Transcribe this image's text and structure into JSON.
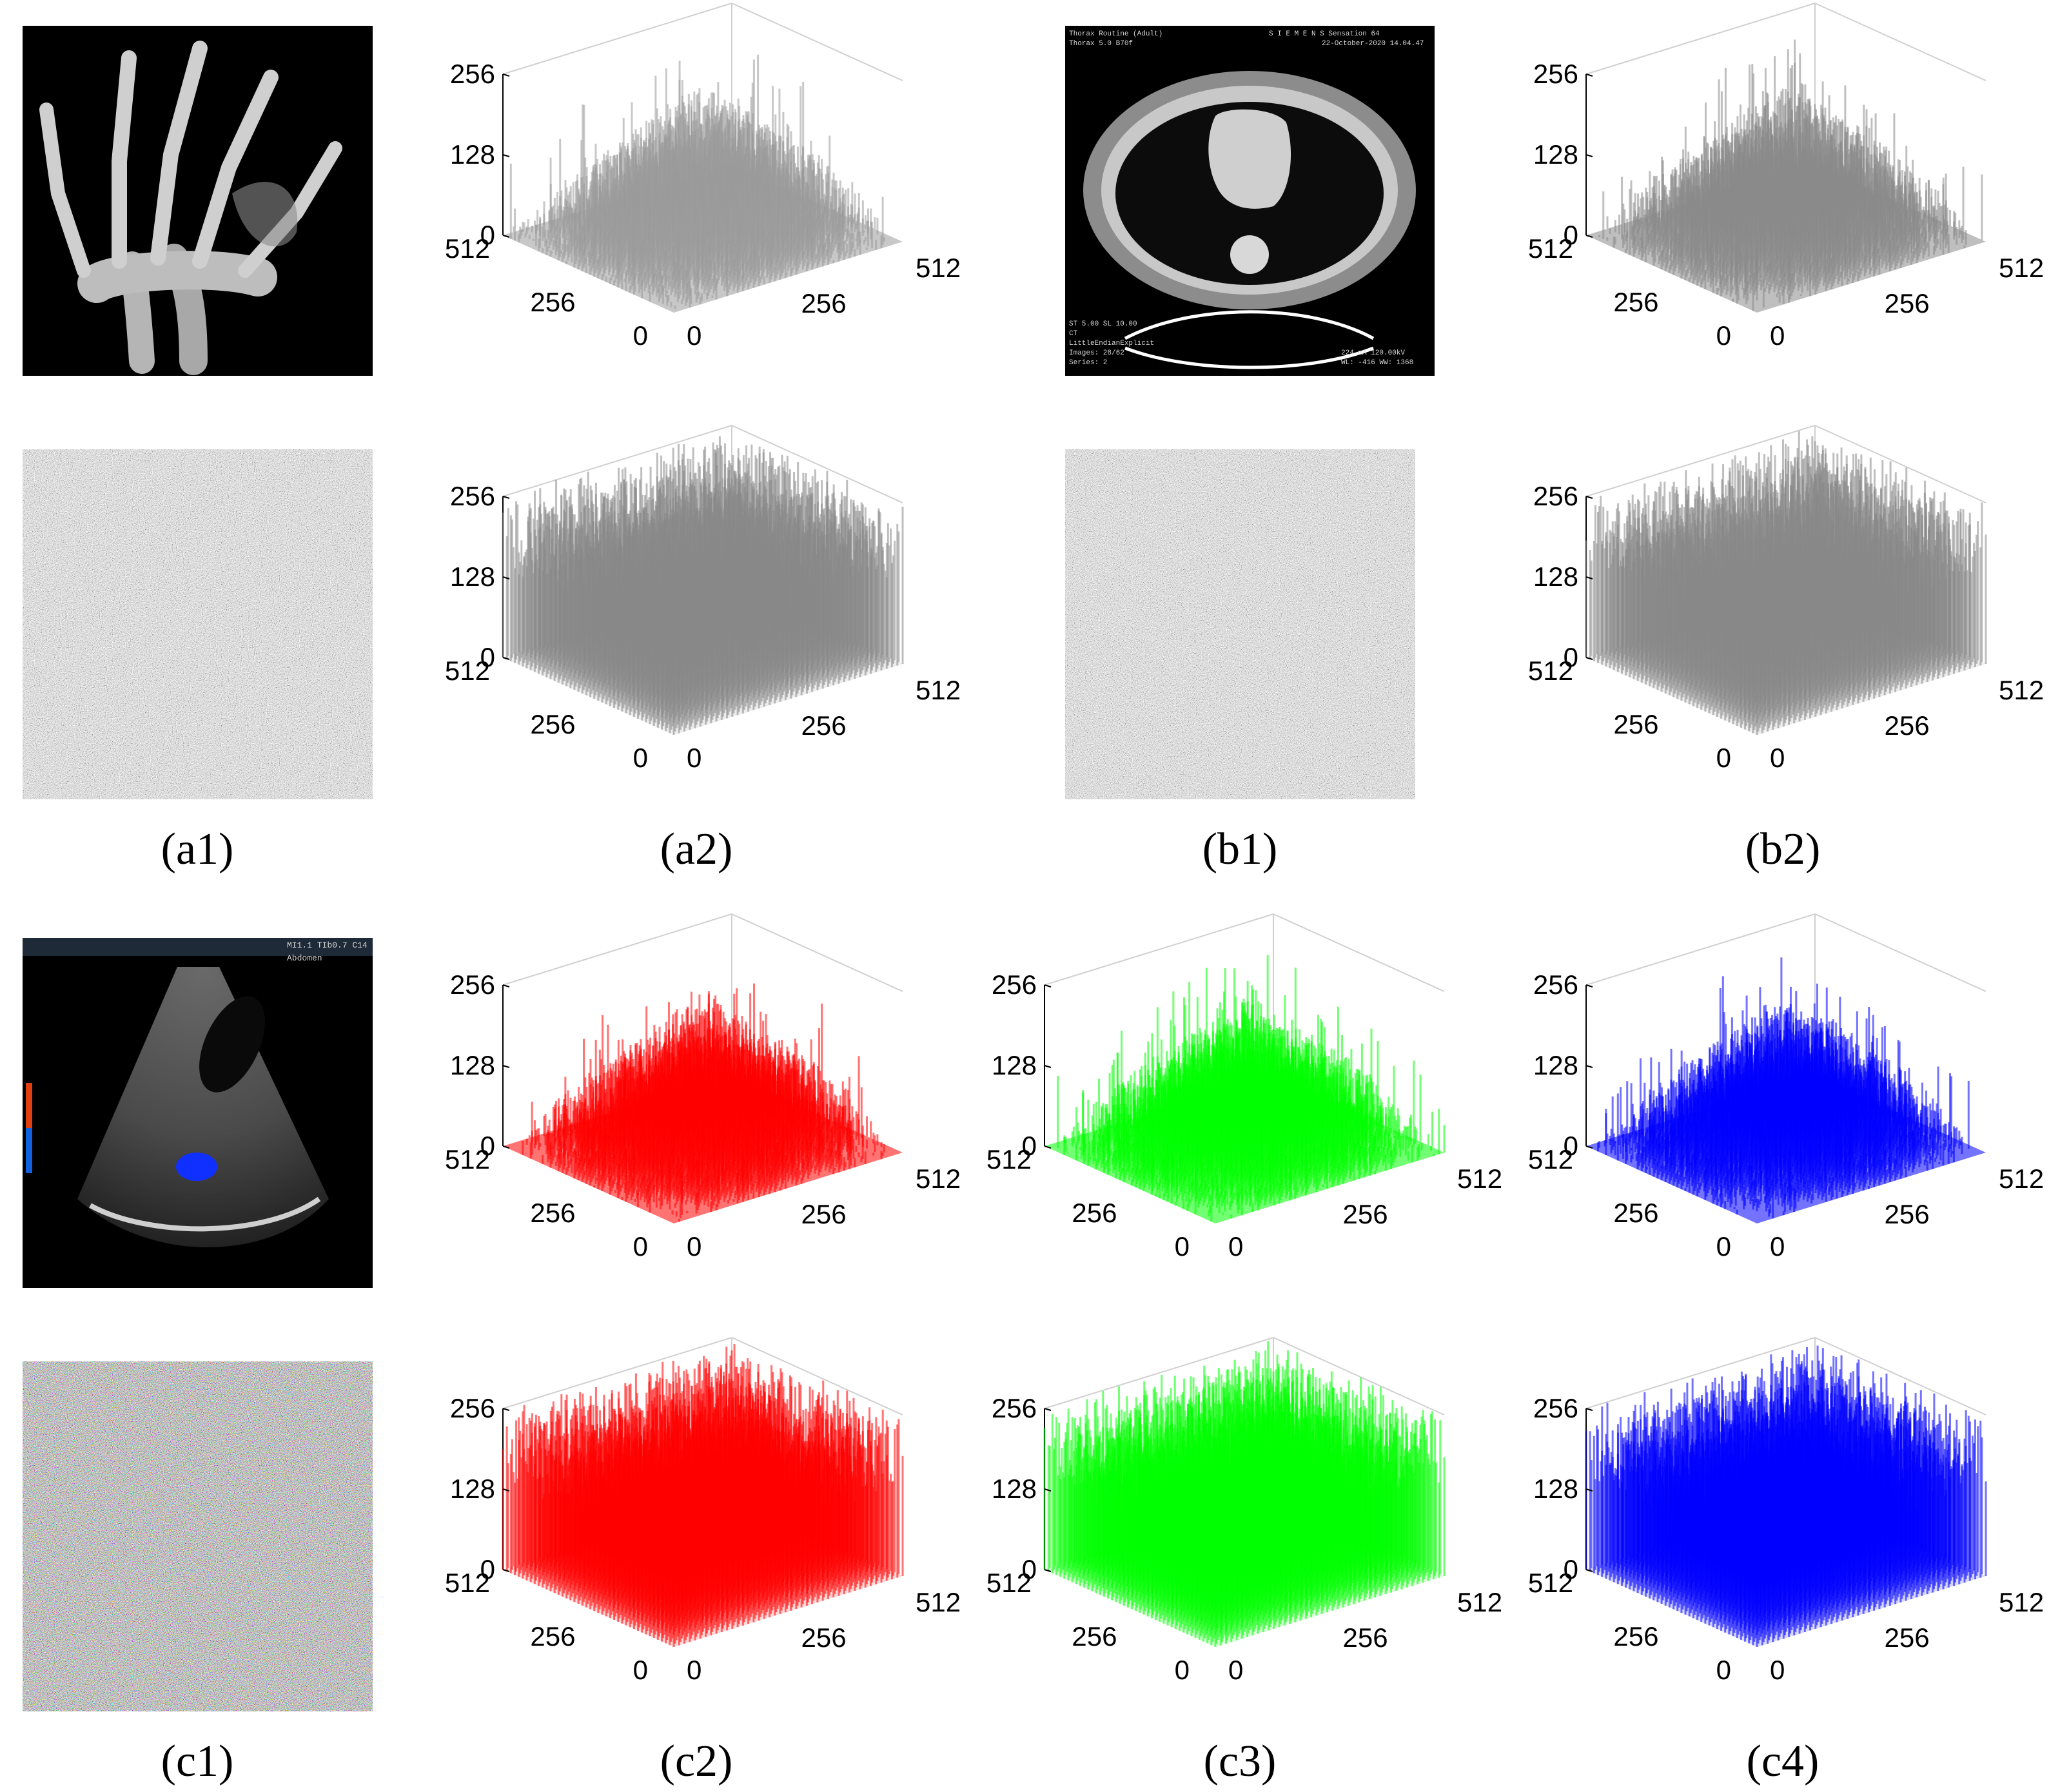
{
  "chart_data": [
    {
      "panel": "a1",
      "type": "image",
      "kind": "x-ray of hand",
      "caption": "(a1)"
    },
    {
      "panel": "a2",
      "type": "surface3d",
      "caption": "(a2)",
      "color": "#9a9a9a",
      "x_ticks": [
        "0",
        "256",
        "512"
      ],
      "y_ticks": [
        "0",
        "256",
        "512"
      ],
      "z_ticks": [
        "0",
        "128",
        "256"
      ],
      "distribution": "plain"
    },
    {
      "panel": "b1",
      "type": "image",
      "kind": "CT thorax scan",
      "caption": "(b1)",
      "overlay_text": [
        "Thorax Routine (Adult)",
        "S I E M E N S Sensation 64",
        "Thorax 5.0 B70f",
        "22-October-2020 14.04.47",
        "ST 5.00 SL 10.00",
        "CT",
        "LittleEndianExplicit",
        "Images: 28/62",
        "Series: 2",
        "224 mA 120.00kV",
        "WL: -416 WW: 1368"
      ]
    },
    {
      "panel": "b2",
      "type": "surface3d",
      "caption": "(b2)",
      "color": "#8a8a8a",
      "x_ticks": [
        "0",
        "256",
        "512"
      ],
      "y_ticks": [
        "0",
        "256",
        "512"
      ],
      "z_ticks": [
        "0",
        "128",
        "256"
      ],
      "distribution": "plain"
    },
    {
      "panel": "a1-enc",
      "type": "image",
      "kind": "encrypted noise (gray)"
    },
    {
      "panel": "a2-enc",
      "type": "surface3d",
      "color": "#888888",
      "x_ticks": [
        "0",
        "256",
        "512"
      ],
      "y_ticks": [
        "0",
        "256",
        "512"
      ],
      "z_ticks": [
        "0",
        "128",
        "256"
      ],
      "distribution": "uniform"
    },
    {
      "panel": "b1-enc",
      "type": "image",
      "kind": "encrypted noise (gray)"
    },
    {
      "panel": "b2-enc",
      "type": "surface3d",
      "color": "#888888",
      "x_ticks": [
        "0",
        "256",
        "512"
      ],
      "y_ticks": [
        "0",
        "256",
        "512"
      ],
      "z_ticks": [
        "0",
        "128",
        "256"
      ],
      "distribution": "uniform"
    },
    {
      "panel": "c1",
      "type": "image",
      "kind": "ultrasound of liver",
      "caption": "(c1)",
      "overlay_text": [
        "MI1.1 TIb0.7 C14",
        "Abdomen"
      ]
    },
    {
      "panel": "c2",
      "type": "surface3d",
      "caption": "(c2)",
      "color": "#ff0000",
      "x_ticks": [
        "0",
        "256",
        "512"
      ],
      "y_ticks": [
        "0",
        "256",
        "512"
      ],
      "z_ticks": [
        "0",
        "128",
        "256"
      ],
      "distribution": "plain"
    },
    {
      "panel": "c3",
      "type": "surface3d",
      "caption": "(c3)",
      "color": "#00ff00",
      "x_ticks": [
        "0",
        "256",
        "512"
      ],
      "y_ticks": [
        "0",
        "256",
        "512"
      ],
      "z_ticks": [
        "0",
        "128",
        "256"
      ],
      "distribution": "plain"
    },
    {
      "panel": "c4",
      "type": "surface3d",
      "caption": "(c4)",
      "color": "#0000ff",
      "x_ticks": [
        "0",
        "256",
        "512"
      ],
      "y_ticks": [
        "0",
        "256",
        "512"
      ],
      "z_ticks": [
        "0",
        "128",
        "256"
      ],
      "distribution": "plain"
    },
    {
      "panel": "c1-enc",
      "type": "image",
      "kind": "encrypted noise (color)"
    },
    {
      "panel": "c2-enc",
      "type": "surface3d",
      "color": "#ff0000",
      "x_ticks": [
        "0",
        "256",
        "512"
      ],
      "y_ticks": [
        "0",
        "256",
        "512"
      ],
      "z_ticks": [
        "0",
        "128",
        "256"
      ],
      "distribution": "uniform"
    },
    {
      "panel": "c3-enc",
      "type": "surface3d",
      "color": "#00ff00",
      "x_ticks": [
        "0",
        "256",
        "512"
      ],
      "y_ticks": [
        "0",
        "256",
        "512"
      ],
      "z_ticks": [
        "0",
        "128",
        "256"
      ],
      "distribution": "uniform"
    },
    {
      "panel": "c4-enc",
      "type": "surface3d",
      "color": "#0000ff",
      "x_ticks": [
        "0",
        "256",
        "512"
      ],
      "y_ticks": [
        "0",
        "256",
        "512"
      ],
      "z_ticks": [
        "0",
        "128",
        "256"
      ],
      "distribution": "uniform"
    }
  ]
}
